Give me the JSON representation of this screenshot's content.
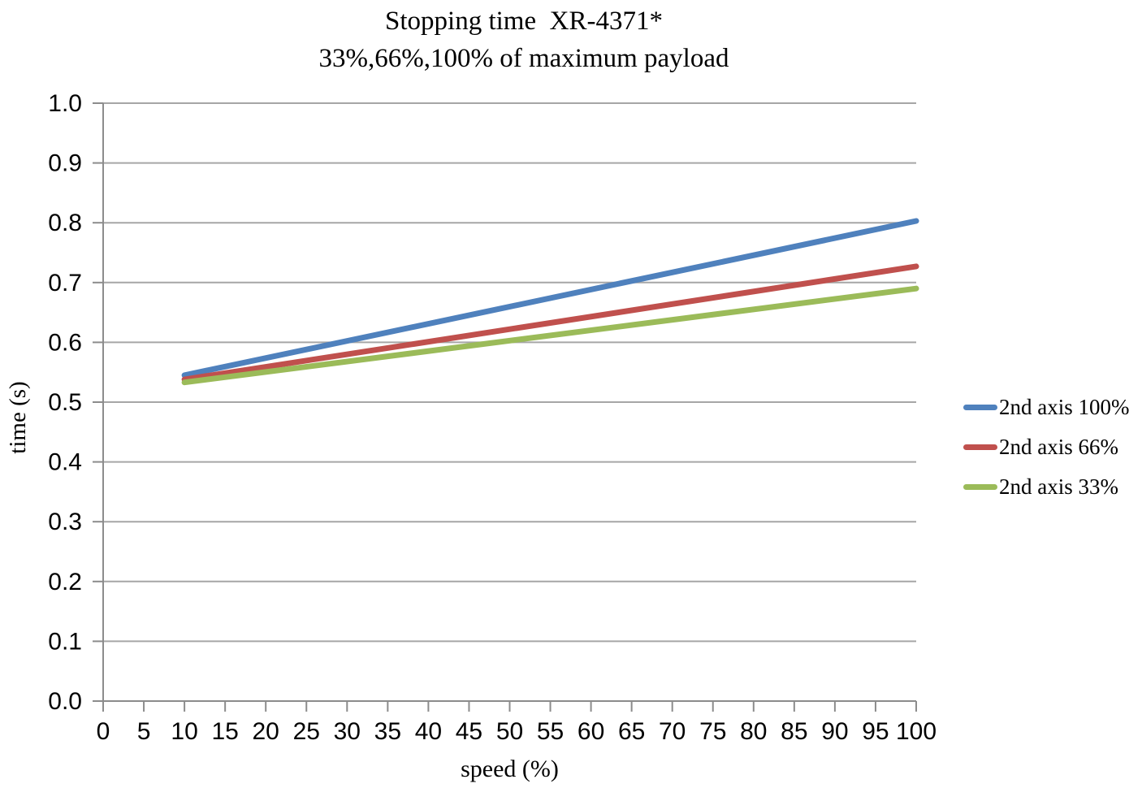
{
  "chart_data": {
    "type": "line",
    "title": "Stopping time  XR-4371*",
    "subtitle": "33%,66%,100% of maximum payload",
    "xlabel": "speed (%)",
    "ylabel": "time (s)",
    "xlim": [
      0,
      100
    ],
    "ylim": [
      0.0,
      1.0
    ],
    "x_ticks": [
      0,
      5,
      10,
      15,
      20,
      25,
      30,
      35,
      40,
      45,
      50,
      55,
      60,
      65,
      70,
      75,
      80,
      85,
      90,
      95,
      100
    ],
    "y_ticks": [
      0.0,
      0.1,
      0.2,
      0.3,
      0.4,
      0.5,
      0.6,
      0.7,
      0.8,
      0.9,
      1.0
    ],
    "grid": "horizontal",
    "legend_position": "right",
    "series": [
      {
        "name": "2nd axis 100%",
        "color": "#4F81BD",
        "points": [
          [
            10,
            0.545
          ],
          [
            100,
            0.803
          ]
        ]
      },
      {
        "name": "2nd axis 66%",
        "color": "#C0504D",
        "points": [
          [
            10,
            0.538
          ],
          [
            100,
            0.727
          ]
        ]
      },
      {
        "name": "2nd axis 33%",
        "color": "#9BBB59",
        "points": [
          [
            10,
            0.533
          ],
          [
            100,
            0.69
          ]
        ]
      }
    ],
    "colors": {
      "gridline": "#A6A6A6",
      "axis": "#8C8C8C",
      "text": "#000000",
      "background": "#FFFFFF"
    }
  }
}
